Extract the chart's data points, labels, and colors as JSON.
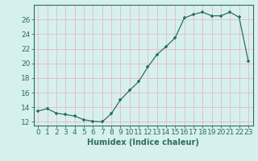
{
  "x": [
    0,
    1,
    2,
    3,
    4,
    5,
    6,
    7,
    8,
    9,
    10,
    11,
    12,
    13,
    14,
    15,
    16,
    17,
    18,
    19,
    20,
    21,
    22,
    23
  ],
  "y": [
    13.5,
    13.8,
    13.2,
    13.0,
    12.8,
    12.3,
    12.1,
    12.0,
    13.1,
    15.0,
    16.3,
    17.5,
    19.5,
    21.2,
    22.3,
    23.5,
    26.2,
    26.7,
    27.0,
    26.5,
    26.5,
    27.0,
    26.3,
    20.3
  ],
  "xlabel": "Humidex (Indice chaleur)",
  "ylim": [
    11.5,
    28
  ],
  "xlim": [
    -0.5,
    23.5
  ],
  "yticks": [
    12,
    14,
    16,
    18,
    20,
    22,
    24,
    26
  ],
  "xticks": [
    0,
    1,
    2,
    3,
    4,
    5,
    6,
    7,
    8,
    9,
    10,
    11,
    12,
    13,
    14,
    15,
    16,
    17,
    18,
    19,
    20,
    21,
    22,
    23
  ],
  "line_color": "#2e6e5e",
  "marker_color": "#2e6e5e",
  "bg_color": "#d6f0f0",
  "grid_color": "#e8b8b8",
  "axis_color": "#2e6e5e",
  "label_fontsize": 7,
  "tick_fontsize": 6.5
}
